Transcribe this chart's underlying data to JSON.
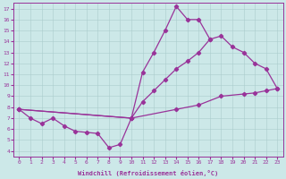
{
  "xlabel": "Windchill (Refroidissement éolien,°C)",
  "bg_color": "#cce8e8",
  "line_color": "#993399",
  "xlim": [
    -0.5,
    23.5
  ],
  "ylim": [
    3.5,
    17.5
  ],
  "xticks": [
    0,
    1,
    2,
    3,
    4,
    5,
    6,
    7,
    8,
    9,
    10,
    11,
    12,
    13,
    14,
    15,
    16,
    17,
    18,
    19,
    20,
    21,
    22,
    23
  ],
  "yticks": [
    4,
    5,
    6,
    7,
    8,
    9,
    10,
    11,
    12,
    13,
    14,
    15,
    16,
    17
  ],
  "lines": [
    {
      "x": [
        0,
        1,
        2,
        3,
        4,
        5,
        6,
        7,
        8,
        9,
        10,
        11,
        12,
        13,
        14,
        15,
        16,
        17
      ],
      "y": [
        7.8,
        7.0,
        6.5,
        7.0,
        6.3,
        5.8,
        5.7,
        5.6,
        4.3,
        4.6,
        7.0,
        11.2,
        13.0,
        15.0,
        17.2,
        16.0,
        16.0,
        14.2
      ]
    },
    {
      "x": [
        0,
        10,
        11,
        12,
        13,
        14,
        15,
        16,
        17,
        18,
        19,
        20,
        21,
        22,
        23
      ],
      "y": [
        7.8,
        7.0,
        8.5,
        9.5,
        10.5,
        11.5,
        12.2,
        13.0,
        14.2,
        14.5,
        13.5,
        13.0,
        12.0,
        11.5,
        9.7
      ]
    },
    {
      "x": [
        0,
        10,
        14,
        16,
        18,
        20,
        21,
        22,
        23
      ],
      "y": [
        7.8,
        7.0,
        7.8,
        8.2,
        9.0,
        9.2,
        9.3,
        9.5,
        9.7
      ]
    }
  ]
}
